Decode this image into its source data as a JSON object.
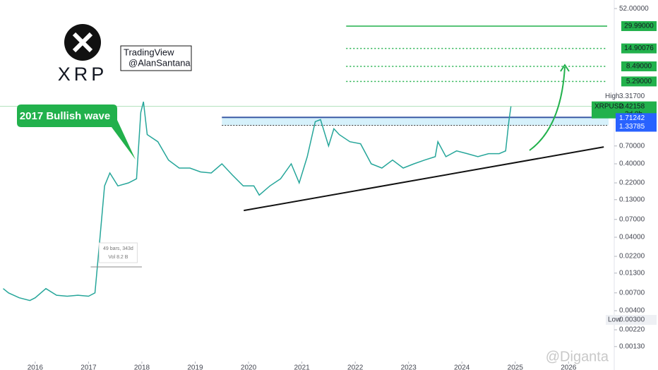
{
  "header": {
    "logo_text": "XRP",
    "credit_line1": "TradingView",
    "credit_line2": "@AlanSantana",
    "watermark": "@Diganta"
  },
  "chart_data": {
    "type": "line",
    "log_scale": true,
    "annotation": "2017 Bullish wave",
    "x": [
      2015.4,
      2015.5,
      2015.7,
      2015.9,
      2016.0,
      2016.2,
      2016.4,
      2016.6,
      2016.8,
      2017.0,
      2017.12,
      2017.2,
      2017.3,
      2017.4,
      2017.55,
      2017.75,
      2017.9,
      2017.98,
      2018.03,
      2018.1,
      2018.3,
      2018.5,
      2018.7,
      2018.9,
      2019.1,
      2019.3,
      2019.5,
      2019.7,
      2019.9,
      2020.1,
      2020.2,
      2020.4,
      2020.6,
      2020.8,
      2020.95,
      2021.1,
      2021.25,
      2021.35,
      2021.5,
      2021.6,
      2021.7,
      2021.9,
      2022.1,
      2022.3,
      2022.5,
      2022.7,
      2022.9,
      2023.1,
      2023.3,
      2023.5,
      2023.55,
      2023.7,
      2023.9,
      2024.1,
      2024.3,
      2024.5,
      2024.7,
      2024.82,
      2024.88,
      2024.92
    ],
    "series": [
      {
        "name": "XRPUSD",
        "color": "#26a69a",
        "values": [
          0.008,
          0.007,
          0.006,
          0.0055,
          0.006,
          0.008,
          0.0065,
          0.0063,
          0.0065,
          0.0063,
          0.007,
          0.03,
          0.2,
          0.3,
          0.2,
          0.22,
          0.25,
          2.0,
          2.8,
          1.0,
          0.8,
          0.45,
          0.35,
          0.35,
          0.31,
          0.3,
          0.4,
          0.28,
          0.2,
          0.2,
          0.15,
          0.2,
          0.25,
          0.4,
          0.22,
          0.5,
          1.5,
          1.6,
          0.7,
          1.2,
          1.0,
          0.8,
          0.75,
          0.4,
          0.35,
          0.45,
          0.35,
          0.4,
          0.45,
          0.5,
          0.8,
          0.5,
          0.6,
          0.55,
          0.5,
          0.55,
          0.55,
          0.6,
          1.5,
          2.42158
        ]
      }
    ],
    "xlim": [
      2015.34,
      2026.75
    ],
    "xticks": [
      2016,
      2017,
      2018,
      2019,
      2020,
      2021,
      2022,
      2023,
      2024,
      2025,
      2026
    ],
    "ylim": [
      0.00085,
      68
    ],
    "yticks": [
      {
        "value": 52,
        "label": "52.00000"
      },
      {
        "value": 0.7,
        "label": "0.70000"
      },
      {
        "value": 0.4,
        "label": "0.40000"
      },
      {
        "value": 0.22,
        "label": "0.22000"
      },
      {
        "value": 0.13,
        "label": "0.13000"
      },
      {
        "value": 0.07,
        "label": "0.07000"
      },
      {
        "value": 0.04,
        "label": "0.04000"
      },
      {
        "value": 0.022,
        "label": "0.02200"
      },
      {
        "value": 0.013,
        "label": "0.01300"
      },
      {
        "value": 0.007,
        "label": "0.00700"
      },
      {
        "value": 0.004,
        "label": "0.00400"
      },
      {
        "value": 0.0022,
        "label": "0.00220"
      },
      {
        "value": 0.0013,
        "label": "0.00130"
      }
    ],
    "levels": [
      {
        "value": 29.99,
        "label": "29.99000",
        "style": "solid"
      },
      {
        "value": 14.90076,
        "label": "14.90076",
        "style": "dotted"
      },
      {
        "value": 8.49,
        "label": "8.49000",
        "style": "dotted"
      },
      {
        "value": 5.29,
        "label": "5.29000",
        "style": "dotted"
      }
    ],
    "level_color": "#22b14c",
    "level_start": 2021.83,
    "zone": [
      {
        "value": 1.71242,
        "label": "1.71242"
      },
      {
        "value": 1.33785,
        "label": "1.33785"
      }
    ],
    "zone_color": "#2962ff",
    "zone_start": 2019.5,
    "high": {
      "label": "High",
      "value": 3.317,
      "value_label": "3.31700"
    },
    "low": {
      "label": "Low",
      "value": 0.003,
      "value_label": "0.00300"
    },
    "last": {
      "value": 2.42158,
      "label": "2.42158",
      "countdown": "2d 0h"
    },
    "trendline": {
      "x": [
        2019.91,
        2026.66
      ],
      "y": [
        0.0925,
        0.678
      ]
    },
    "measure": {
      "text": "49 bars, 343d",
      "volume": "Vol 8.2 B",
      "x": [
        2017.04,
        2018.0
      ]
    }
  }
}
